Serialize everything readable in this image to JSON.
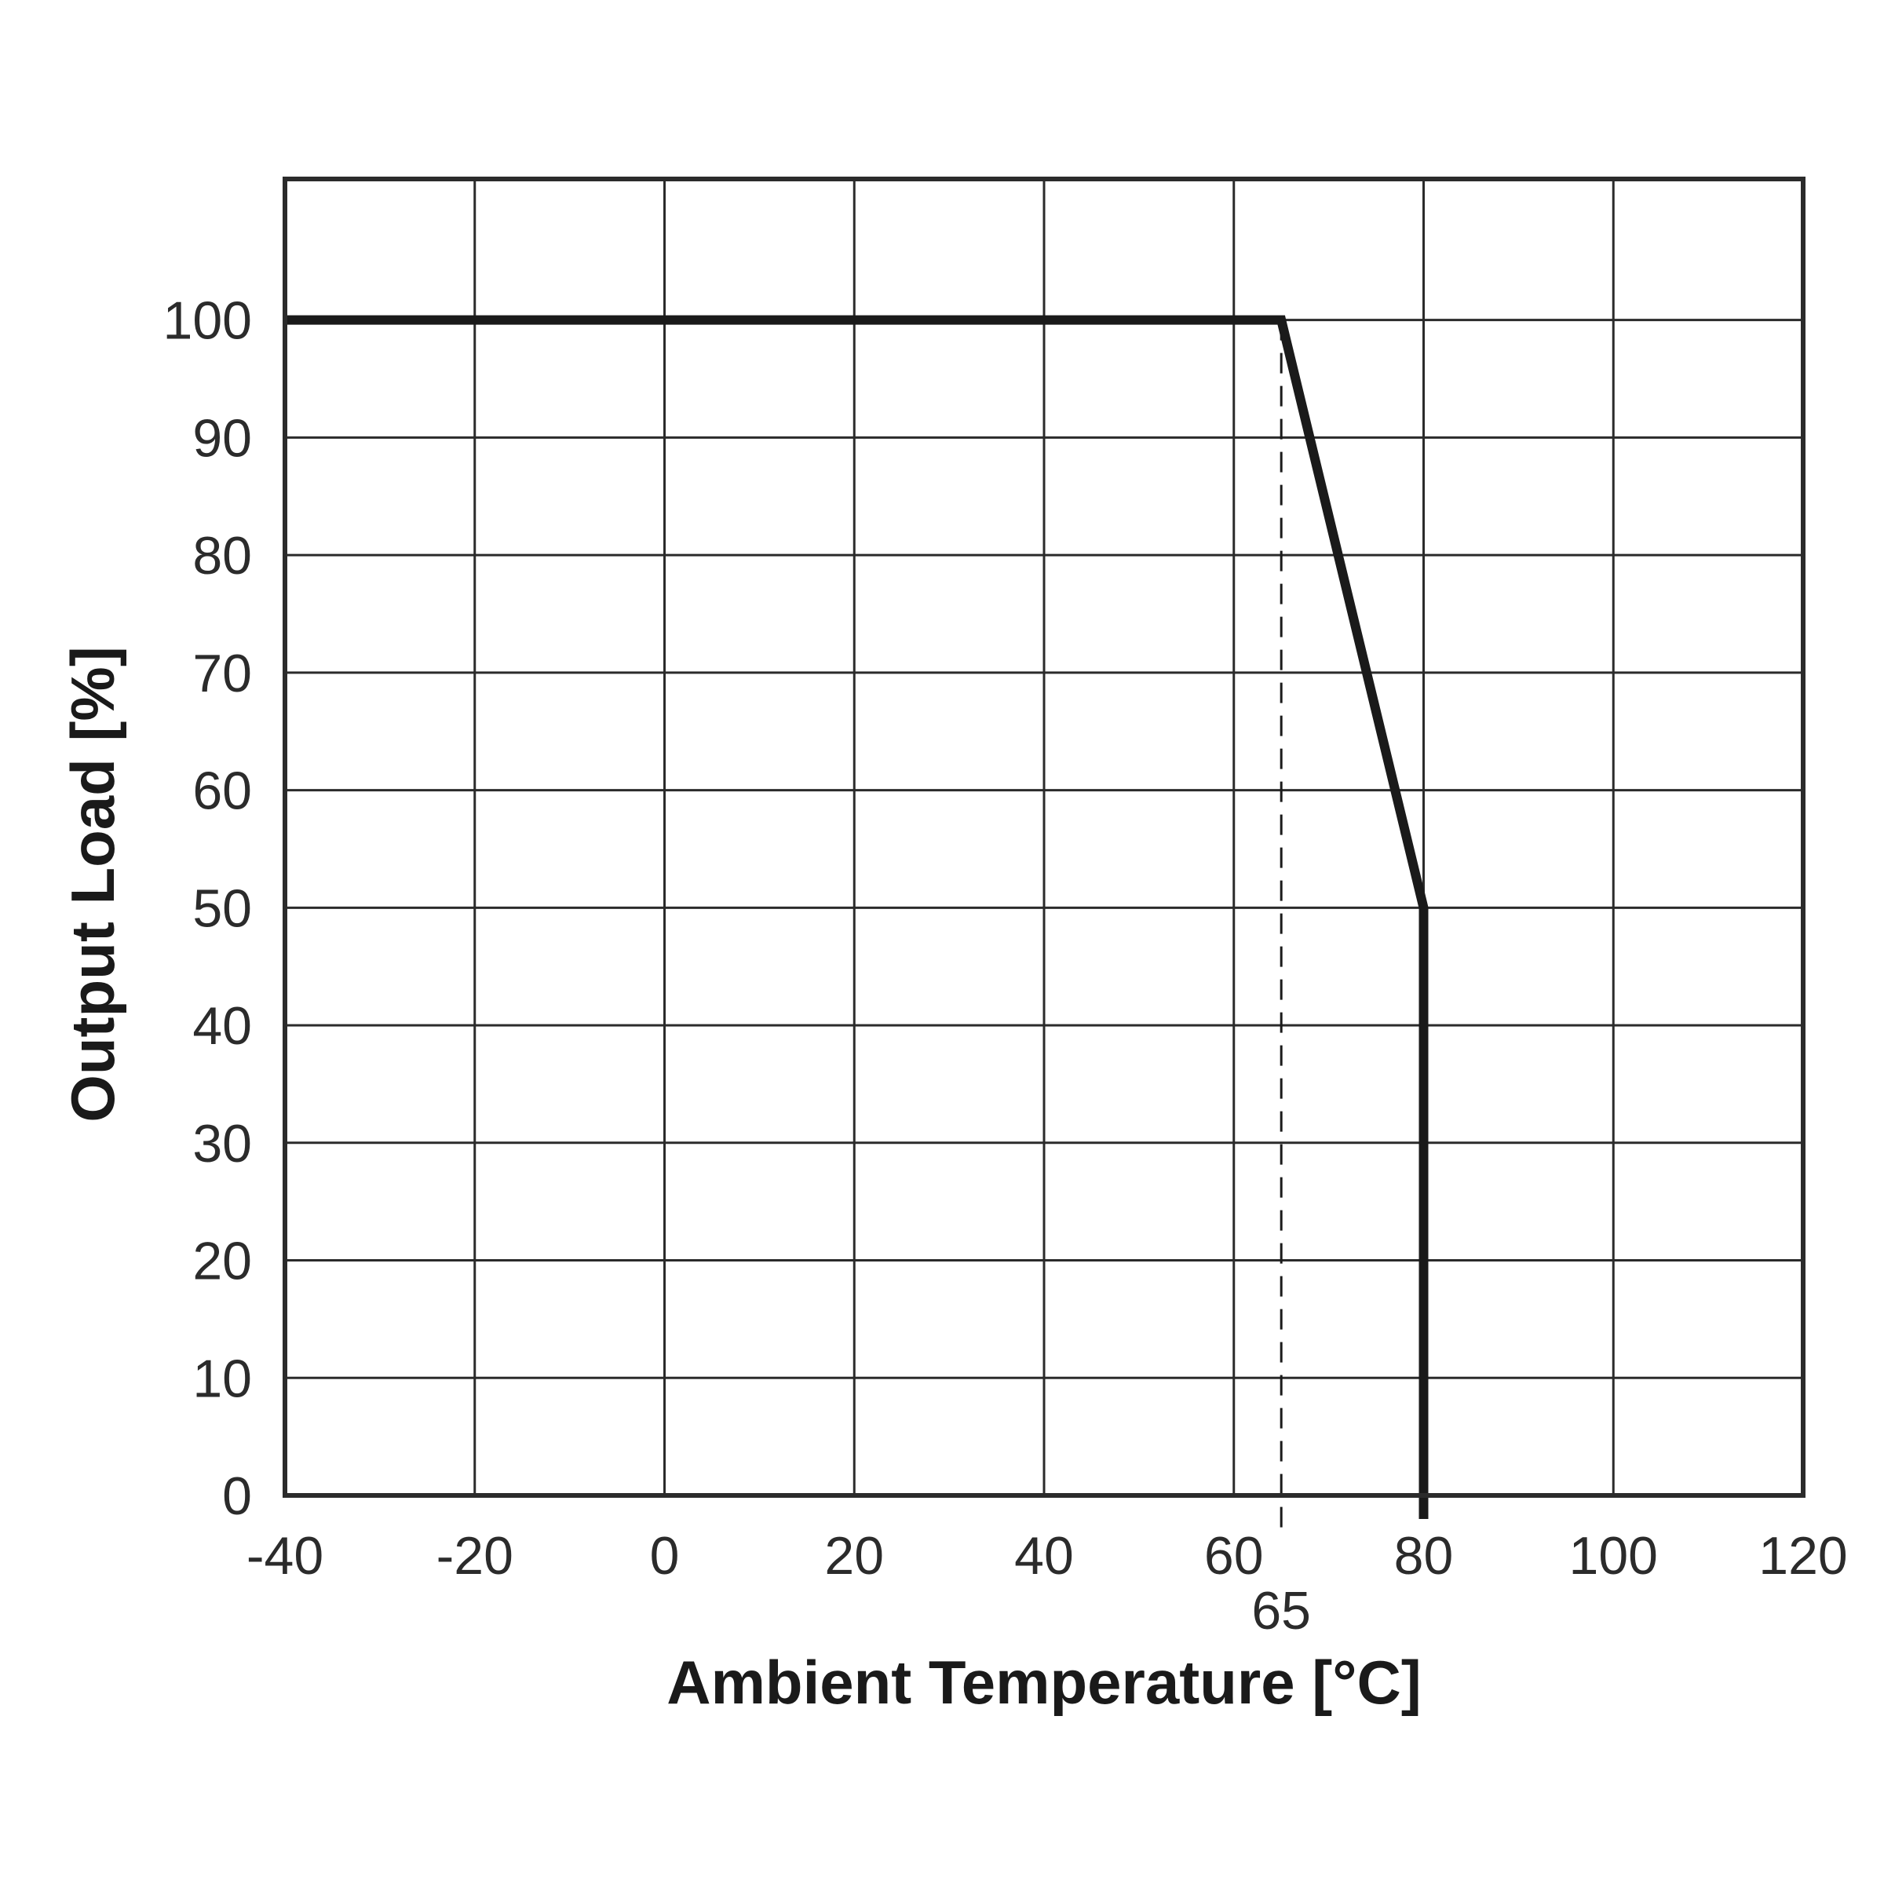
{
  "chart_data": {
    "type": "line",
    "title": "",
    "xlabel": "Ambient Temperature [°C]",
    "ylabel": "Output Load [%]",
    "xlim": [
      -40,
      120
    ],
    "ylim": [
      0,
      100
    ],
    "x_ticks": [
      -40,
      -20,
      0,
      20,
      40,
      60,
      80,
      100,
      120
    ],
    "y_ticks": [
      0,
      10,
      20,
      30,
      40,
      50,
      60,
      70,
      80,
      90,
      100
    ],
    "grid": true,
    "series": [
      {
        "points": [
          [
            -40,
            100
          ],
          [
            65,
            100
          ],
          [
            80,
            50
          ],
          [
            80,
            -2
          ]
        ]
      }
    ],
    "annotations": [
      {
        "type": "dashed-vertical-line",
        "x": 65,
        "label": "65"
      }
    ],
    "colors": {
      "line": "#1a1a1a",
      "grid": "#2b2b2b",
      "frame": "#2b2b2b"
    }
  }
}
